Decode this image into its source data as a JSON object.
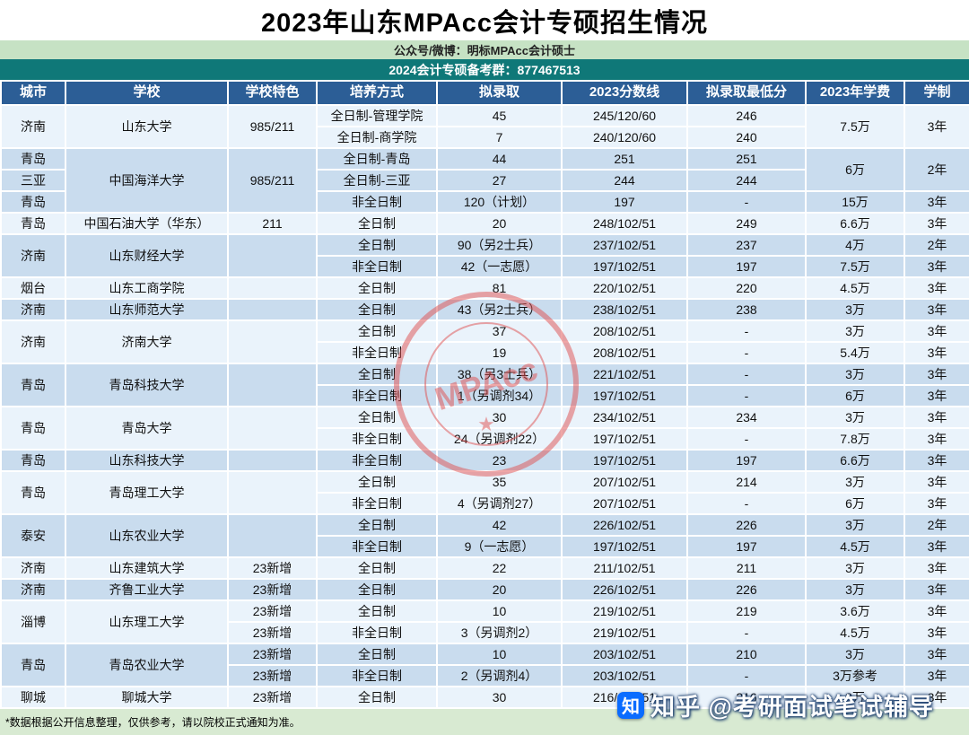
{
  "title": "2023年山东MPAcc会计专硕招生情况",
  "banner": {
    "green": "公众号/微博：明标MPAcc会计硕士",
    "teal": "2024会计专硕备考群：877467513"
  },
  "footer_note": "*数据根据公开信息整理，仅供参考，请以院校正式通知为准。",
  "watermark": {
    "stamp_text": "MPAcc",
    "zhihu_label": "知乎 @考研面试笔试辅导"
  },
  "colors": {
    "header_bg": "#2c5e96",
    "green_bg": "#c6e2c4",
    "teal_bg": "#0f7878",
    "row_light": "#eaf3fb",
    "row_dark": "#c9dcee",
    "footer_bg": "#d8ead2",
    "stamp_red": "#e04f4f"
  },
  "table": {
    "headers": [
      "城市",
      "学校",
      "学校特色",
      "培养方式",
      "拟录取",
      "2023分数线",
      "拟录取最低分",
      "2023年学费",
      "学制"
    ],
    "rows": [
      {
        "g": "light",
        "cells": [
          {
            "t": "济南",
            "rs": 2
          },
          {
            "t": "山东大学",
            "rs": 2
          },
          {
            "t": "985/211",
            "rs": 2
          },
          {
            "t": "全日制-管理学院"
          },
          {
            "t": "45"
          },
          {
            "t": "245/120/60"
          },
          {
            "t": "246"
          },
          {
            "t": "7.5万",
            "rs": 2
          },
          {
            "t": "3年",
            "rs": 2
          }
        ]
      },
      {
        "g": "light",
        "cells": [
          {
            "t": "全日制-商学院"
          },
          {
            "t": "7"
          },
          {
            "t": "240/120/60"
          },
          {
            "t": "240"
          }
        ]
      },
      {
        "g": "dark",
        "cells": [
          {
            "t": "青岛"
          },
          {
            "t": "中国海洋大学",
            "rs": 3
          },
          {
            "t": "985/211",
            "rs": 3
          },
          {
            "t": "全日制-青岛"
          },
          {
            "t": "44"
          },
          {
            "t": "251"
          },
          {
            "t": "251"
          },
          {
            "t": "6万",
            "rs": 2
          },
          {
            "t": "2年",
            "rs": 2
          }
        ]
      },
      {
        "g": "dark",
        "cells": [
          {
            "t": "三亚"
          },
          {
            "t": "全日制-三亚"
          },
          {
            "t": "27"
          },
          {
            "t": "244"
          },
          {
            "t": "244"
          }
        ]
      },
      {
        "g": "dark",
        "cells": [
          {
            "t": "青岛"
          },
          {
            "t": "非全日制"
          },
          {
            "t": "120（计划）"
          },
          {
            "t": "197"
          },
          {
            "t": "-"
          },
          {
            "t": "15万"
          },
          {
            "t": "3年"
          }
        ]
      },
      {
        "g": "light",
        "cells": [
          {
            "t": "青岛"
          },
          {
            "t": "中国石油大学（华东）"
          },
          {
            "t": "211"
          },
          {
            "t": "全日制"
          },
          {
            "t": "20"
          },
          {
            "t": "248/102/51"
          },
          {
            "t": "249"
          },
          {
            "t": "6.6万"
          },
          {
            "t": "3年"
          }
        ]
      },
      {
        "g": "dark",
        "cells": [
          {
            "t": "济南",
            "rs": 2
          },
          {
            "t": "山东财经大学",
            "rs": 2
          },
          {
            "t": "",
            "rs": 2
          },
          {
            "t": "全日制"
          },
          {
            "t": "90（另2士兵）"
          },
          {
            "t": "237/102/51"
          },
          {
            "t": "237"
          },
          {
            "t": "4万"
          },
          {
            "t": "2年"
          }
        ]
      },
      {
        "g": "dark",
        "cells": [
          {
            "t": "非全日制"
          },
          {
            "t": "42（一志愿）"
          },
          {
            "t": "197/102/51"
          },
          {
            "t": "197"
          },
          {
            "t": "7.5万"
          },
          {
            "t": "3年"
          }
        ]
      },
      {
        "g": "light",
        "cells": [
          {
            "t": "烟台"
          },
          {
            "t": "山东工商学院"
          },
          {
            "t": ""
          },
          {
            "t": "全日制"
          },
          {
            "t": "81"
          },
          {
            "t": "220/102/51"
          },
          {
            "t": "220"
          },
          {
            "t": "4.5万"
          },
          {
            "t": "3年"
          }
        ]
      },
      {
        "g": "dark",
        "cells": [
          {
            "t": "济南"
          },
          {
            "t": "山东师范大学"
          },
          {
            "t": ""
          },
          {
            "t": "全日制"
          },
          {
            "t": "43（另2士兵）"
          },
          {
            "t": "238/102/51"
          },
          {
            "t": "238"
          },
          {
            "t": "3万"
          },
          {
            "t": "3年"
          }
        ]
      },
      {
        "g": "light",
        "cells": [
          {
            "t": "济南",
            "rs": 2
          },
          {
            "t": "济南大学",
            "rs": 2
          },
          {
            "t": "",
            "rs": 2
          },
          {
            "t": "全日制"
          },
          {
            "t": "37"
          },
          {
            "t": "208/102/51"
          },
          {
            "t": "-"
          },
          {
            "t": "3万"
          },
          {
            "t": "3年"
          }
        ]
      },
      {
        "g": "light",
        "cells": [
          {
            "t": "非全日制"
          },
          {
            "t": "19"
          },
          {
            "t": "208/102/51"
          },
          {
            "t": "-"
          },
          {
            "t": "5.4万"
          },
          {
            "t": "3年"
          }
        ]
      },
      {
        "g": "dark",
        "cells": [
          {
            "t": "青岛",
            "rs": 2
          },
          {
            "t": "青岛科技大学",
            "rs": 2
          },
          {
            "t": "",
            "rs": 2
          },
          {
            "t": "全日制"
          },
          {
            "t": "38（另3士兵）"
          },
          {
            "t": "221/102/51"
          },
          {
            "t": "-"
          },
          {
            "t": "3万"
          },
          {
            "t": "3年"
          }
        ]
      },
      {
        "g": "dark",
        "cells": [
          {
            "t": "非全日制"
          },
          {
            "t": "1（另调剂34）"
          },
          {
            "t": "197/102/51"
          },
          {
            "t": "-"
          },
          {
            "t": "6万"
          },
          {
            "t": "3年"
          }
        ]
      },
      {
        "g": "light",
        "cells": [
          {
            "t": "青岛",
            "rs": 2
          },
          {
            "t": "青岛大学",
            "rs": 2
          },
          {
            "t": "",
            "rs": 2
          },
          {
            "t": "全日制"
          },
          {
            "t": "30"
          },
          {
            "t": "234/102/51"
          },
          {
            "t": "234"
          },
          {
            "t": "3万"
          },
          {
            "t": "3年"
          }
        ]
      },
      {
        "g": "light",
        "cells": [
          {
            "t": "非全日制"
          },
          {
            "t": "24（另调剂22）"
          },
          {
            "t": "197/102/51"
          },
          {
            "t": "-"
          },
          {
            "t": "7.8万"
          },
          {
            "t": "3年"
          }
        ]
      },
      {
        "g": "dark",
        "cells": [
          {
            "t": "青岛"
          },
          {
            "t": "山东科技大学"
          },
          {
            "t": ""
          },
          {
            "t": "非全日制"
          },
          {
            "t": "23"
          },
          {
            "t": "197/102/51"
          },
          {
            "t": "197"
          },
          {
            "t": "6.6万"
          },
          {
            "t": "3年"
          }
        ]
      },
      {
        "g": "light",
        "cells": [
          {
            "t": "青岛",
            "rs": 2
          },
          {
            "t": "青岛理工大学",
            "rs": 2
          },
          {
            "t": "",
            "rs": 2
          },
          {
            "t": "全日制"
          },
          {
            "t": "35"
          },
          {
            "t": "207/102/51"
          },
          {
            "t": "214"
          },
          {
            "t": "3万"
          },
          {
            "t": "3年"
          }
        ]
      },
      {
        "g": "light",
        "cells": [
          {
            "t": "非全日制"
          },
          {
            "t": "4（另调剂27）"
          },
          {
            "t": "207/102/51"
          },
          {
            "t": "-"
          },
          {
            "t": "6万"
          },
          {
            "t": "3年"
          }
        ]
      },
      {
        "g": "dark",
        "cells": [
          {
            "t": "泰安",
            "rs": 2
          },
          {
            "t": "山东农业大学",
            "rs": 2
          },
          {
            "t": "",
            "rs": 2
          },
          {
            "t": "全日制"
          },
          {
            "t": "42"
          },
          {
            "t": "226/102/51"
          },
          {
            "t": "226"
          },
          {
            "t": "3万"
          },
          {
            "t": "2年"
          }
        ]
      },
      {
        "g": "dark",
        "cells": [
          {
            "t": "非全日制"
          },
          {
            "t": "9（一志愿）"
          },
          {
            "t": "197/102/51"
          },
          {
            "t": "197"
          },
          {
            "t": "4.5万"
          },
          {
            "t": "3年"
          }
        ]
      },
      {
        "g": "light",
        "cells": [
          {
            "t": "济南"
          },
          {
            "t": "山东建筑大学"
          },
          {
            "t": "23新增"
          },
          {
            "t": "全日制"
          },
          {
            "t": "22"
          },
          {
            "t": "211/102/51"
          },
          {
            "t": "211"
          },
          {
            "t": "3万"
          },
          {
            "t": "3年"
          }
        ]
      },
      {
        "g": "dark",
        "cells": [
          {
            "t": "济南"
          },
          {
            "t": "齐鲁工业大学"
          },
          {
            "t": "23新增"
          },
          {
            "t": "全日制"
          },
          {
            "t": "20"
          },
          {
            "t": "226/102/51"
          },
          {
            "t": "226"
          },
          {
            "t": "3万"
          },
          {
            "t": "3年"
          }
        ]
      },
      {
        "g": "light",
        "cells": [
          {
            "t": "淄博",
            "rs": 2
          },
          {
            "t": "山东理工大学",
            "rs": 2
          },
          {
            "t": "23新增"
          },
          {
            "t": "全日制"
          },
          {
            "t": "10"
          },
          {
            "t": "219/102/51"
          },
          {
            "t": "219"
          },
          {
            "t": "3.6万"
          },
          {
            "t": "3年"
          }
        ]
      },
      {
        "g": "light",
        "cells": [
          {
            "t": "23新增"
          },
          {
            "t": "非全日制"
          },
          {
            "t": "3（另调剂2）"
          },
          {
            "t": "219/102/51"
          },
          {
            "t": "-"
          },
          {
            "t": "4.5万"
          },
          {
            "t": "3年"
          }
        ]
      },
      {
        "g": "dark",
        "cells": [
          {
            "t": "青岛",
            "rs": 2
          },
          {
            "t": "青岛农业大学",
            "rs": 2
          },
          {
            "t": "23新增"
          },
          {
            "t": "全日制"
          },
          {
            "t": "10"
          },
          {
            "t": "203/102/51"
          },
          {
            "t": "210"
          },
          {
            "t": "3万"
          },
          {
            "t": "3年"
          }
        ]
      },
      {
        "g": "dark",
        "cells": [
          {
            "t": "23新增"
          },
          {
            "t": "非全日制"
          },
          {
            "t": "2（另调剂4）"
          },
          {
            "t": "203/102/51"
          },
          {
            "t": "-"
          },
          {
            "t": "3万参考"
          },
          {
            "t": "3年"
          }
        ]
      },
      {
        "g": "light",
        "cells": [
          {
            "t": "聊城"
          },
          {
            "t": "聊城大学"
          },
          {
            "t": "23新增"
          },
          {
            "t": "全日制"
          },
          {
            "t": "30"
          },
          {
            "t": "216/102/51"
          },
          {
            "t": "216"
          },
          {
            "t": "3万"
          },
          {
            "t": "3年"
          }
        ]
      }
    ]
  }
}
